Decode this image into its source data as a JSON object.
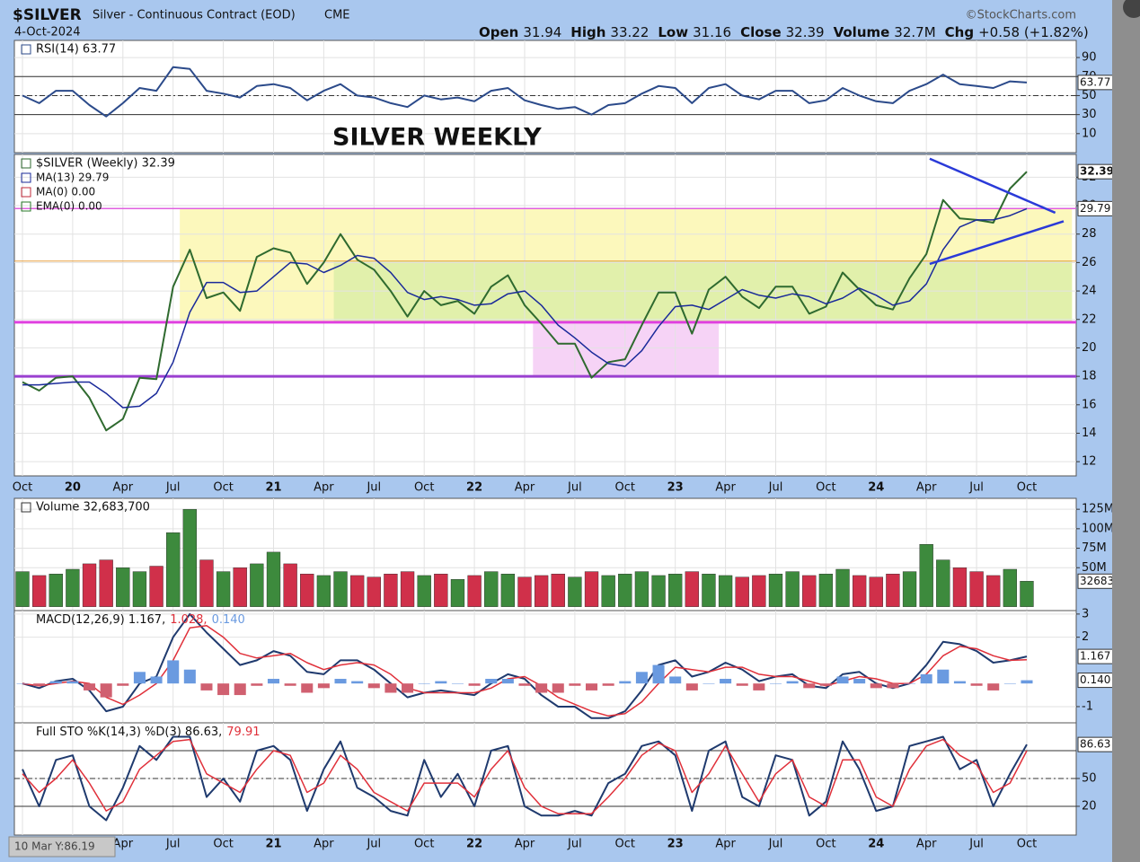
{
  "header": {
    "symbol": "$SILVER",
    "name": "Silver - Continuous Contract (EOD)",
    "exchange": "CME",
    "brand": "©StockCharts.com",
    "date": "4-Oct-2024",
    "quote": [
      {
        "label": "Open",
        "value": "31.94"
      },
      {
        "label": "High",
        "value": "33.22"
      },
      {
        "label": "Low",
        "value": "31.16"
      },
      {
        "label": "Close",
        "value": "32.39"
      },
      {
        "label": "Volume",
        "value": "32.7M"
      },
      {
        "label": "Chg",
        "value": "+0.58 (+1.82%)"
      }
    ],
    "tooltip": "10 Mar Y:86.19"
  },
  "chart_data": [
    {
      "type": "line",
      "ylim": [
        -10,
        108
      ],
      "yticks": [
        10,
        30,
        50,
        70,
        90
      ],
      "grid": true,
      "hlines": [
        {
          "value": 30,
          "color": "#333"
        },
        {
          "value": 70,
          "color": "#333"
        },
        {
          "value": 50,
          "color": "#333",
          "dash": true
        }
      ],
      "series": [
        {
          "name": "RSI(14) 63.77",
          "color": "#2b4a8a",
          "end_tag": true,
          "values": [
            50,
            42,
            55,
            55,
            40,
            28,
            42,
            58,
            55,
            80,
            78,
            55,
            52,
            48,
            60,
            62,
            58,
            45,
            55,
            62,
            50,
            48,
            42,
            38,
            50,
            46,
            48,
            44,
            55,
            58,
            45,
            40,
            36,
            38,
            30,
            40,
            42,
            52,
            60,
            58,
            42,
            58,
            62,
            50,
            46,
            55,
            55,
            42,
            45,
            58,
            50,
            44,
            42,
            55,
            62,
            72,
            62,
            60,
            58,
            65,
            63.77
          ]
        }
      ]
    },
    {
      "type": "line",
      "annotation": "SILVER WEEKLY",
      "ylim": [
        11,
        33.6
      ],
      "yticks": [
        12,
        14,
        16,
        18,
        20,
        22,
        24,
        26,
        28,
        30,
        32
      ],
      "grid": true,
      "categories": [
        "Oct",
        null,
        null,
        "20",
        null,
        null,
        "Apr",
        null,
        null,
        "Jul",
        null,
        null,
        "Oct",
        null,
        null,
        "21",
        null,
        null,
        "Apr",
        null,
        null,
        "Jul",
        null,
        null,
        "Oct",
        null,
        null,
        "22",
        null,
        null,
        "Apr",
        null,
        null,
        "Jul",
        null,
        null,
        "Oct",
        null,
        null,
        "23",
        null,
        null,
        "Apr",
        null,
        null,
        "Jul",
        null,
        null,
        "Oct",
        null,
        null,
        "24",
        null,
        null,
        "Apr",
        null,
        null,
        "Jul",
        null,
        null,
        "Oct"
      ],
      "zones": [
        {
          "x": [
            9.4,
            62.7
          ],
          "y": [
            21.8,
            29.8
          ],
          "color": "#fbf7b0"
        },
        {
          "x": [
            18.6,
            62.7
          ],
          "y": [
            21.8,
            26.1
          ],
          "color": "#dcefa8"
        },
        {
          "x": [
            30.5,
            41.6
          ],
          "y": [
            18,
            21.8
          ],
          "color": "#f5cbf5"
        }
      ],
      "hlines": [
        {
          "value": 29.8,
          "color": "#e060e0",
          "width": 1.5
        },
        {
          "value": 26.1,
          "color": "#e8a040",
          "width": 1
        },
        {
          "value": 21.8,
          "color": "#e040e0",
          "width": 3
        },
        {
          "value": 18,
          "color": "#9a40d0",
          "width": 3
        }
      ],
      "trendlines": [
        {
          "x": [
            54.2,
            61.7
          ],
          "y": [
            33.3,
            29.5
          ],
          "color": "#2a3ad8"
        },
        {
          "x": [
            54.2,
            62.2
          ],
          "y": [
            25.9,
            28.9
          ],
          "color": "#2a3ad8"
        }
      ],
      "series": [
        {
          "name": "$SILVER (Weekly) 32.39",
          "color": "#2f6a2f",
          "end_tag": true,
          "values": [
            17.6,
            17.0,
            17.9,
            18.0,
            16.5,
            14.2,
            15.0,
            17.9,
            17.8,
            24.3,
            26.9,
            23.5,
            23.9,
            22.6,
            26.4,
            27.0,
            26.7,
            24.5,
            26.0,
            28.0,
            26.2,
            25.5,
            24.0,
            22.2,
            24.0,
            23.0,
            23.3,
            22.4,
            24.3,
            25.1,
            23.0,
            21.7,
            20.3,
            20.3,
            17.9,
            19.0,
            19.2,
            21.6,
            23.9,
            23.9,
            21.0,
            24.1,
            25.0,
            23.6,
            22.8,
            24.3,
            24.3,
            22.4,
            22.9,
            25.3,
            24.1,
            23.0,
            22.7,
            24.9,
            26.6,
            30.4,
            29.1,
            29.0,
            28.8,
            31.2,
            32.39
          ]
        },
        {
          "name": "MA(13) 29.79",
          "color": "#1a2a9a",
          "end_tag": true,
          "values": [
            17.4,
            17.4,
            17.5,
            17.6,
            17.6,
            16.8,
            15.8,
            15.9,
            16.8,
            19.0,
            22.5,
            24.6,
            24.6,
            23.9,
            24.0,
            25.0,
            26.0,
            25.9,
            25.3,
            25.8,
            26.5,
            26.3,
            25.3,
            23.9,
            23.4,
            23.6,
            23.4,
            23.0,
            23.1,
            23.8,
            24.0,
            23.0,
            21.6,
            20.7,
            19.7,
            18.9,
            18.7,
            19.8,
            21.5,
            22.9,
            23.0,
            22.7,
            23.4,
            24.1,
            23.7,
            23.5,
            23.8,
            23.6,
            23.1,
            23.5,
            24.2,
            23.7,
            23.0,
            23.3,
            24.5,
            26.9,
            28.5,
            29.0,
            29.0,
            29.3,
            29.79
          ]
        }
      ],
      "legend_extra": [
        {
          "name": "MA(0) 0.00",
          "color": "#c0283a"
        },
        {
          "name": "EMA(0) 0.00",
          "color": "#2a7a2a"
        }
      ]
    },
    {
      "type": "bar",
      "ylim": [
        -5000000,
        139000000
      ],
      "yticks": [
        {
          "value": 50000000,
          "label": "50M"
        },
        {
          "value": 75000000,
          "label": "75M"
        },
        {
          "value": 100000000,
          "label": "100M"
        },
        {
          "value": 125000000,
          "label": "125M"
        }
      ],
      "grid": true,
      "up_color": "#3d8a3d",
      "down_color": "#d0304a",
      "series": [
        {
          "name": "Volume 32,683,700",
          "color": "#333",
          "end_tag": true,
          "values": [
            45000000,
            40000000,
            42000000,
            48000000,
            55000000,
            60000000,
            50000000,
            45000000,
            52000000,
            95000000,
            125000000,
            60000000,
            45000000,
            50000000,
            55000000,
            70000000,
            55000000,
            42000000,
            40000000,
            45000000,
            40000000,
            38000000,
            42000000,
            45000000,
            40000000,
            42000000,
            35000000,
            40000000,
            45000000,
            42000000,
            38000000,
            40000000,
            42000000,
            38000000,
            45000000,
            40000000,
            42000000,
            45000000,
            40000000,
            42000000,
            45000000,
            42000000,
            40000000,
            38000000,
            40000000,
            42000000,
            45000000,
            40000000,
            42000000,
            48000000,
            40000000,
            38000000,
            42000000,
            45000000,
            80000000,
            60000000,
            50000000,
            45000000,
            40000000,
            48000000,
            32683700
          ]
        }
      ]
    },
    {
      "type": "line",
      "ylim": [
        -1.7,
        3.15
      ],
      "yticks": [
        -1,
        2,
        3
      ],
      "grid": true,
      "series": [
        {
          "name": "MACD(12,26,9) 1.167,",
          "color": "#1f3a6e",
          "end_tag": true,
          "values": [
            0.0,
            -0.2,
            0.1,
            0.2,
            -0.3,
            -1.2,
            -1.0,
            0.0,
            0.3,
            2.0,
            3.0,
            2.2,
            1.5,
            0.8,
            1.0,
            1.4,
            1.2,
            0.5,
            0.4,
            1.0,
            1.0,
            0.6,
            0.0,
            -0.6,
            -0.4,
            -0.3,
            -0.4,
            -0.5,
            0.0,
            0.4,
            0.2,
            -0.5,
            -1.0,
            -1.0,
            -1.5,
            -1.5,
            -1.2,
            -0.3,
            0.8,
            1.0,
            0.3,
            0.5,
            0.9,
            0.6,
            0.1,
            0.3,
            0.4,
            -0.1,
            -0.2,
            0.4,
            0.5,
            0.0,
            -0.2,
            0.0,
            0.8,
            1.8,
            1.7,
            1.4,
            0.9,
            1.0,
            1.167
          ]
        },
        {
          "name": "1.028,",
          "color": "#e0303a",
          "values": [
            0.0,
            -0.1,
            0.0,
            0.1,
            0.0,
            -0.6,
            -0.9,
            -0.5,
            0.0,
            1.0,
            2.4,
            2.5,
            2.0,
            1.3,
            1.1,
            1.2,
            1.3,
            0.9,
            0.6,
            0.8,
            0.9,
            0.8,
            0.4,
            -0.2,
            -0.4,
            -0.4,
            -0.4,
            -0.4,
            -0.2,
            0.2,
            0.3,
            -0.1,
            -0.6,
            -0.9,
            -1.2,
            -1.4,
            -1.3,
            -0.8,
            0.0,
            0.7,
            0.6,
            0.5,
            0.7,
            0.7,
            0.4,
            0.3,
            0.3,
            0.1,
            -0.1,
            0.1,
            0.3,
            0.2,
            0.0,
            0.0,
            0.4,
            1.2,
            1.6,
            1.5,
            1.2,
            1.0,
            1.028
          ]
        },
        {
          "name": "0.140",
          "type": "bar",
          "color": "#6a9ae0",
          "neg_color": "#d06070",
          "end_tag": true,
          "value_labels": {
            "60": "0.140"
          },
          "values": [
            0.0,
            -0.1,
            0.1,
            0.1,
            -0.3,
            -0.6,
            -0.1,
            0.5,
            0.3,
            1.0,
            0.6,
            -0.3,
            -0.5,
            -0.5,
            -0.1,
            0.2,
            -0.1,
            -0.4,
            -0.2,
            0.2,
            0.1,
            -0.2,
            -0.4,
            -0.4,
            0.0,
            0.1,
            0.0,
            -0.1,
            0.2,
            0.2,
            -0.1,
            -0.4,
            -0.4,
            -0.1,
            -0.3,
            -0.1,
            0.1,
            0.5,
            0.8,
            0.3,
            -0.3,
            0.0,
            0.2,
            -0.1,
            -0.3,
            0.0,
            0.1,
            -0.2,
            -0.1,
            0.3,
            0.2,
            -0.2,
            -0.2,
            0.0,
            0.4,
            0.6,
            0.1,
            -0.1,
            -0.3,
            0.0,
            0.14
          ]
        }
      ]
    },
    {
      "type": "line",
      "ylim": [
        -11,
        110
      ],
      "yticks": [
        20,
        50
      ],
      "grid": true,
      "hlines": [
        {
          "value": 20,
          "color": "#333"
        },
        {
          "value": 80,
          "color": "#333"
        },
        {
          "value": 50,
          "color": "#333",
          "dash": true
        }
      ],
      "series": [
        {
          "name": "Full STO %K(14,3) %D(3) 86.63,",
          "color": "#1f3a6e",
          "end_tag": true,
          "values": [
            60,
            20,
            70,
            75,
            20,
            5,
            40,
            85,
            70,
            95,
            95,
            30,
            50,
            25,
            80,
            85,
            70,
            15,
            60,
            90,
            40,
            30,
            15,
            10,
            70,
            30,
            55,
            20,
            80,
            85,
            20,
            10,
            10,
            15,
            10,
            45,
            55,
            85,
            90,
            75,
            15,
            80,
            90,
            30,
            20,
            75,
            70,
            10,
            25,
            90,
            60,
            15,
            20,
            85,
            90,
            95,
            60,
            70,
            20,
            55,
            86.63
          ]
        },
        {
          "name": "79.91",
          "color": "#e0303a",
          "values": [
            55,
            35,
            50,
            70,
            45,
            15,
            25,
            60,
            75,
            90,
            92,
            55,
            45,
            35,
            60,
            80,
            75,
            35,
            45,
            75,
            60,
            35,
            25,
            15,
            45,
            45,
            45,
            30,
            60,
            80,
            40,
            20,
            12,
            12,
            12,
            30,
            50,
            75,
            88,
            80,
            35,
            55,
            85,
            55,
            25,
            55,
            70,
            30,
            20,
            70,
            70,
            30,
            20,
            60,
            85,
            92,
            75,
            65,
            35,
            45,
            79.91
          ]
        }
      ]
    }
  ]
}
